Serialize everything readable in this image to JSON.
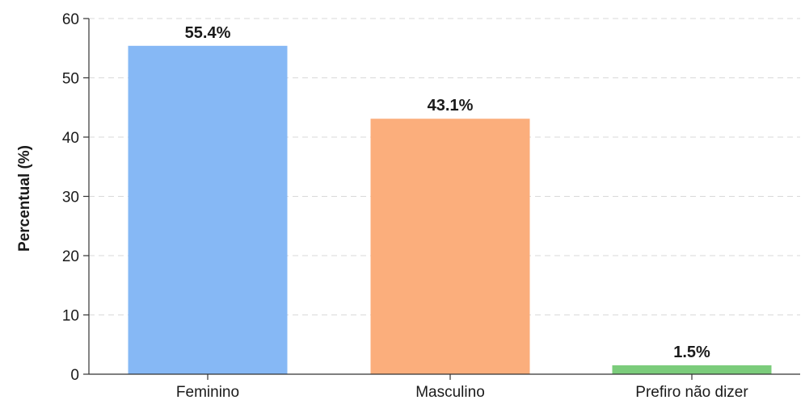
{
  "chart_data": {
    "type": "bar",
    "categories": [
      "Feminino",
      "Masculino",
      "Prefiro não dizer"
    ],
    "values": [
      55.4,
      43.1,
      1.5
    ],
    "value_labels": [
      "55.4%",
      "43.1%",
      "1.5%"
    ],
    "colors": [
      "#86b8f5",
      "#fbae7c",
      "#7bcc7b"
    ],
    "title": "",
    "xlabel": "",
    "ylabel": "Percentual (%)",
    "ylim": [
      0,
      60
    ],
    "yticks": [
      0,
      10,
      20,
      30,
      40,
      50,
      60
    ],
    "grid": true,
    "legend": "none"
  }
}
